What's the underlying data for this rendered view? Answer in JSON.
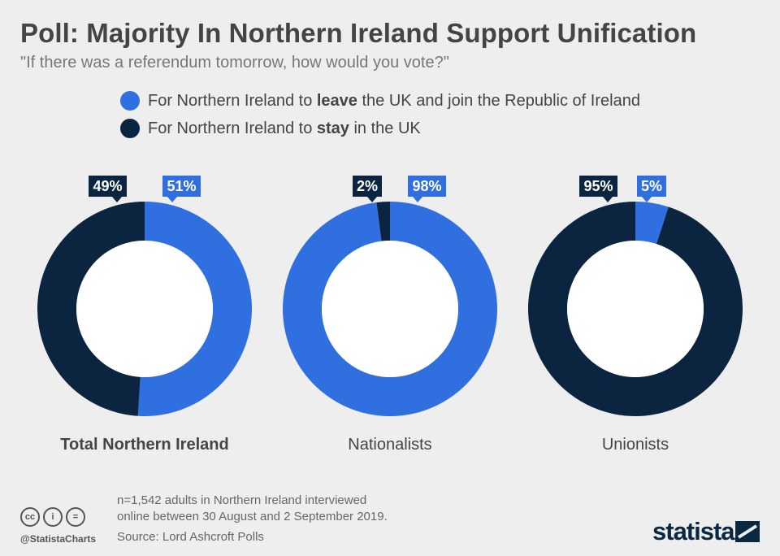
{
  "title": "Poll: Majority In Northern Ireland Support Unification",
  "subtitle": "\"If there was a referendum tomorrow, how would you vote?\"",
  "legend": [
    {
      "prefix": "For Northern Ireland to ",
      "bold": "leave",
      "suffix": " the UK and join the Republic of Ireland",
      "color": "#2f6fdf"
    },
    {
      "prefix": "For Northern Ireland to ",
      "bold": "stay",
      "suffix": " in the UK",
      "color": "#0b2540"
    }
  ],
  "chart_data": [
    {
      "type": "pie",
      "label": "Total Northern Ireland",
      "label_bold": true,
      "series": [
        {
          "name": "leave",
          "value": 51,
          "display": "51%"
        },
        {
          "name": "stay",
          "value": 49,
          "display": "49%"
        }
      ]
    },
    {
      "type": "pie",
      "label": "Nationalists",
      "label_bold": false,
      "series": [
        {
          "name": "leave",
          "value": 98,
          "display": "98%"
        },
        {
          "name": "stay",
          "value": 2,
          "display": "2%"
        }
      ]
    },
    {
      "type": "pie",
      "label": "Unionists",
      "label_bold": false,
      "series": [
        {
          "name": "leave",
          "value": 5,
          "display": "5%"
        },
        {
          "name": "stay",
          "value": 95,
          "display": "95%"
        }
      ]
    }
  ],
  "colors": {
    "leave": "#2f6fdf",
    "stay": "#0b2540"
  },
  "footnote": [
    "n=1,542 adults in Northern Ireland interviewed",
    "online between 30 August and 2 September 2019."
  ],
  "source": "Source: Lord Ashcroft Polls",
  "cc_icons": [
    "cc",
    "i",
    "="
  ],
  "handle": "@StatistaCharts",
  "brand": "statista"
}
